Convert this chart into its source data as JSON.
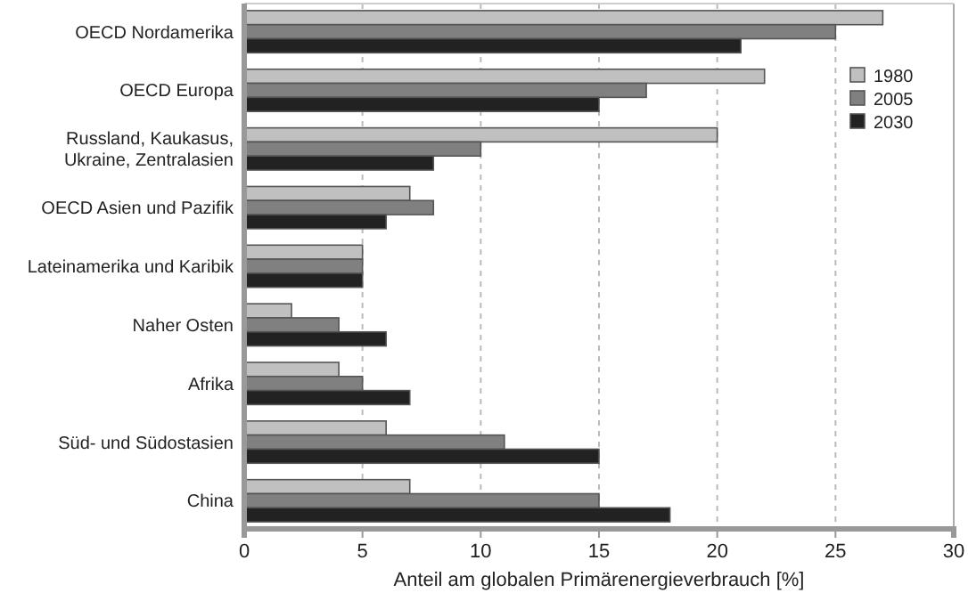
{
  "chart_data": {
    "type": "bar",
    "orientation": "horizontal",
    "xlabel": "Anteil am globalen Primärenergieverbrauch [%]",
    "categories": [
      "OECD Nordamerika",
      "OECD Europa",
      "Russland, Kaukasus, Ukraine, Zentralasien",
      "OECD Asien und Pazifik",
      "Lateinamerika und Karibik",
      "Naher Osten",
      "Afrika",
      "Süd- und Südostasien",
      "China"
    ],
    "series": [
      {
        "name": "1980",
        "color": "#c0c0c0",
        "values": [
          27,
          22,
          20,
          7,
          5,
          2,
          4,
          6,
          7
        ]
      },
      {
        "name": "2005",
        "color": "#808080",
        "values": [
          25,
          17,
          10,
          8,
          5,
          4,
          5,
          11,
          15
        ]
      },
      {
        "name": "2030",
        "color": "#222222",
        "values": [
          21,
          15,
          8,
          6,
          5,
          6,
          7,
          15,
          18
        ]
      }
    ],
    "xlim": [
      0,
      30
    ],
    "xticks": [
      0,
      5,
      10,
      15,
      20,
      25,
      30
    ],
    "grid": "x",
    "legend": "top right"
  }
}
